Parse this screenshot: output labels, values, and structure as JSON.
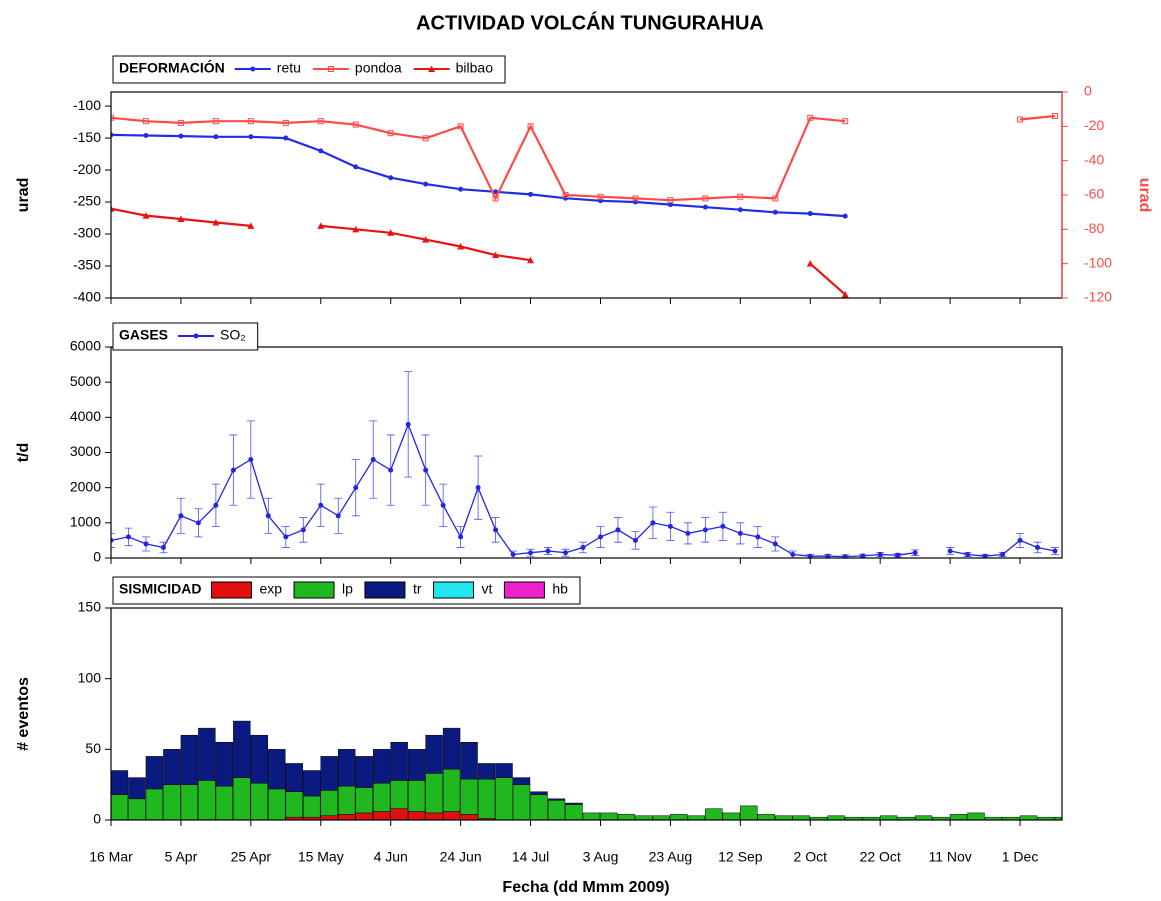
{
  "title": "ACTIVIDAD VOLCÁN TUNGURAHUA",
  "xlabel": "Fecha (dd Mmm 2009)",
  "chart_data": [
    {
      "type": "line",
      "title": "DEFORMACIÓN",
      "ylabel": "urad",
      "y2label": "urad",
      "xlim": [
        "2009-03-16",
        "2009-12-13"
      ],
      "ylim": [
        -400,
        -78
      ],
      "yticks": [
        -400,
        -350,
        -300,
        -250,
        -200,
        -150,
        -100
      ],
      "y2lim": [
        -120,
        0
      ],
      "y2ticks": [
        -120,
        -100,
        -80,
        -60,
        -40,
        -20,
        0
      ],
      "x": [
        "2009-03-16",
        "2009-03-26",
        "2009-04-05",
        "2009-04-15",
        "2009-04-25",
        "2009-05-05",
        "2009-05-15",
        "2009-05-25",
        "2009-06-04",
        "2009-06-14",
        "2009-06-24",
        "2009-07-04",
        "2009-07-14",
        "2009-07-24",
        "2009-08-03",
        "2009-08-13",
        "2009-08-23",
        "2009-09-02",
        "2009-09-12",
        "2009-09-22",
        "2009-10-02",
        "2009-10-12",
        "2009-10-22",
        "2009-11-01",
        "2009-11-11",
        "2009-11-21",
        "2009-12-01",
        "2009-12-11"
      ],
      "series": [
        {
          "name": "retu",
          "color": "#1f2fe0",
          "marker": "circle",
          "values": [
            -145,
            -146,
            -147,
            -148,
            -148,
            -150,
            -170,
            -195,
            -212,
            -222,
            -230,
            -234,
            -238,
            -244,
            -248,
            -250,
            -254,
            -258,
            -262,
            -266,
            -268,
            -272,
            null,
            null,
            null,
            null,
            null,
            null
          ]
        },
        {
          "name": "pondoa",
          "color": "#ff4a4a",
          "marker": "square",
          "axis": "y2",
          "values": [
            -15,
            -17,
            -18,
            -17,
            -17,
            -18,
            -17,
            -19,
            -24,
            -27,
            -20,
            -62,
            -20,
            -60,
            -61,
            -62,
            -63,
            -62,
            -61,
            -62,
            -15,
            -17,
            null,
            null,
            null,
            null,
            -16,
            -14
          ]
        },
        {
          "name": "bilbao",
          "color": "#e81414",
          "marker": "triangle",
          "axis": "y2",
          "values": [
            -68,
            -72,
            -74,
            -76,
            -78,
            null,
            -78,
            -80,
            -82,
            -86,
            -90,
            -95,
            -98,
            null,
            null,
            null,
            null,
            null,
            null,
            null,
            -100,
            -118,
            null,
            null,
            null,
            null,
            null,
            null
          ]
        }
      ]
    },
    {
      "type": "line",
      "title": "GASES",
      "ylabel": "t/d",
      "xlim": [
        "2009-03-16",
        "2009-12-13"
      ],
      "ylim": [
        0,
        6000
      ],
      "yticks": [
        0,
        1000,
        2000,
        3000,
        4000,
        5000,
        6000
      ],
      "x": [
        "2009-03-16",
        "2009-03-21",
        "2009-03-26",
        "2009-03-31",
        "2009-04-05",
        "2009-04-10",
        "2009-04-15",
        "2009-04-20",
        "2009-04-25",
        "2009-04-30",
        "2009-05-05",
        "2009-05-10",
        "2009-05-15",
        "2009-05-20",
        "2009-05-25",
        "2009-05-30",
        "2009-06-04",
        "2009-06-09",
        "2009-06-14",
        "2009-06-19",
        "2009-06-24",
        "2009-06-29",
        "2009-07-04",
        "2009-07-09",
        "2009-07-14",
        "2009-07-19",
        "2009-07-24",
        "2009-07-29",
        "2009-08-03",
        "2009-08-08",
        "2009-08-13",
        "2009-08-18",
        "2009-08-23",
        "2009-08-28",
        "2009-09-02",
        "2009-09-07",
        "2009-09-12",
        "2009-09-17",
        "2009-09-22",
        "2009-09-27",
        "2009-10-02",
        "2009-10-07",
        "2009-10-12",
        "2009-10-17",
        "2009-10-22",
        "2009-10-27",
        "2009-11-01",
        "2009-11-06",
        "2009-11-11",
        "2009-11-16",
        "2009-11-21",
        "2009-11-26",
        "2009-12-01",
        "2009-12-06",
        "2009-12-11"
      ],
      "series": [
        {
          "name": "SO₂",
          "color": "#2424e6",
          "marker": "circle",
          "values": [
            500,
            600,
            400,
            300,
            1200,
            1000,
            1500,
            2500,
            2800,
            1200,
            600,
            800,
            1500,
            1200,
            2000,
            2800,
            2500,
            3800,
            2500,
            1500,
            600,
            2000,
            800,
            100,
            150,
            200,
            150,
            300,
            600,
            800,
            500,
            1000,
            900,
            700,
            800,
            900,
            700,
            600,
            400,
            100,
            50,
            50,
            40,
            60,
            100,
            80,
            150,
            null,
            200,
            100,
            50,
            100,
            500,
            300,
            200
          ],
          "errors": [
            200,
            250,
            200,
            150,
            500,
            400,
            600,
            1000,
            1100,
            500,
            300,
            350,
            600,
            500,
            800,
            1100,
            1000,
            1500,
            1000,
            600,
            300,
            900,
            350,
            100,
            100,
            100,
            100,
            150,
            300,
            350,
            250,
            450,
            400,
            300,
            350,
            400,
            300,
            300,
            200,
            100,
            50,
            50,
            50,
            50,
            60,
            50,
            80,
            null,
            100,
            60,
            50,
            60,
            200,
            150,
            100
          ]
        }
      ]
    },
    {
      "type": "bar",
      "stacked": true,
      "title": "SISMICIDAD",
      "ylabel": "# eventos",
      "xlim": [
        "2009-03-16",
        "2009-12-13"
      ],
      "ylim": [
        0,
        150
      ],
      "yticks": [
        0,
        50,
        100,
        150
      ],
      "xticks": [
        {
          "value": "2009-03-16",
          "label": "16 Mar"
        },
        {
          "value": "2009-04-05",
          "label": "5 Apr"
        },
        {
          "value": "2009-04-25",
          "label": "25 Apr"
        },
        {
          "value": "2009-05-15",
          "label": "15 May"
        },
        {
          "value": "2009-06-04",
          "label": "4 Jun"
        },
        {
          "value": "2009-06-24",
          "label": "24 Jun"
        },
        {
          "value": "2009-07-14",
          "label": "14 Jul"
        },
        {
          "value": "2009-08-03",
          "label": "3 Aug"
        },
        {
          "value": "2009-08-23",
          "label": "23 Aug"
        },
        {
          "value": "2009-09-12",
          "label": "12 Sep"
        },
        {
          "value": "2009-10-02",
          "label": "2 Oct"
        },
        {
          "value": "2009-10-22",
          "label": "22 Oct"
        },
        {
          "value": "2009-11-11",
          "label": "11 Nov"
        },
        {
          "value": "2009-12-01",
          "label": "1 Dec"
        }
      ],
      "x": [
        "2009-03-16",
        "2009-03-21",
        "2009-03-26",
        "2009-03-31",
        "2009-04-05",
        "2009-04-10",
        "2009-04-15",
        "2009-04-20",
        "2009-04-25",
        "2009-04-30",
        "2009-05-05",
        "2009-05-10",
        "2009-05-15",
        "2009-05-20",
        "2009-05-25",
        "2009-05-30",
        "2009-06-04",
        "2009-06-09",
        "2009-06-14",
        "2009-06-19",
        "2009-06-24",
        "2009-06-29",
        "2009-07-04",
        "2009-07-09",
        "2009-07-14",
        "2009-07-19",
        "2009-07-24",
        "2009-07-29",
        "2009-08-03",
        "2009-08-08",
        "2009-08-13",
        "2009-08-18",
        "2009-08-23",
        "2009-08-28",
        "2009-09-02",
        "2009-09-07",
        "2009-09-12",
        "2009-09-17",
        "2009-09-22",
        "2009-09-27",
        "2009-10-02",
        "2009-10-07",
        "2009-10-12",
        "2009-10-17",
        "2009-10-22",
        "2009-10-27",
        "2009-11-01",
        "2009-11-06",
        "2009-11-11",
        "2009-11-16",
        "2009-11-21",
        "2009-11-26",
        "2009-12-01",
        "2009-12-06",
        "2009-12-11"
      ],
      "series": [
        {
          "name": "exp",
          "color": "#e01010",
          "values": [
            0,
            0,
            0,
            0,
            0,
            0,
            0,
            0,
            0,
            0,
            2,
            2,
            3,
            4,
            5,
            6,
            8,
            6,
            5,
            6,
            4,
            1,
            0,
            0,
            0,
            0,
            0,
            0,
            0,
            0,
            0,
            0,
            0,
            0,
            0,
            0,
            0,
            0,
            0,
            0,
            0,
            0,
            0,
            0,
            0,
            0,
            0,
            0,
            0,
            0,
            0,
            0,
            0,
            0,
            0
          ]
        },
        {
          "name": "lp",
          "color": "#1fb81f",
          "values": [
            18,
            15,
            22,
            25,
            25,
            28,
            24,
            30,
            26,
            22,
            18,
            15,
            18,
            20,
            18,
            20,
            20,
            22,
            28,
            30,
            25,
            28,
            30,
            25,
            18,
            14,
            11,
            5,
            5,
            4,
            3,
            3,
            4,
            3,
            8,
            5,
            10,
            4,
            3,
            3,
            2,
            3,
            2,
            2,
            3,
            2,
            3,
            2,
            4,
            5,
            2,
            2,
            3,
            2,
            2
          ]
        },
        {
          "name": "tr",
          "color": "#0a1a80",
          "values": [
            17,
            15,
            23,
            25,
            35,
            37,
            31,
            40,
            34,
            28,
            20,
            18,
            24,
            26,
            22,
            24,
            27,
            22,
            27,
            29,
            26,
            11,
            10,
            5,
            2,
            1,
            1,
            0,
            0,
            0,
            0,
            0,
            0,
            0,
            0,
            0,
            0,
            0,
            0,
            0,
            0,
            0,
            0,
            0,
            0,
            0,
            0,
            0,
            0,
            0,
            0,
            0,
            0,
            0,
            0
          ]
        },
        {
          "name": "vt",
          "color": "#22e6ee",
          "values": [
            0,
            0,
            0,
            0,
            0,
            0,
            0,
            0,
            0,
            0,
            0,
            0,
            0,
            0,
            0,
            0,
            0,
            0,
            0,
            0,
            0,
            0,
            0,
            0,
            0,
            0,
            0,
            0,
            0,
            0,
            0,
            0,
            0,
            0,
            0,
            0,
            0,
            0,
            0,
            0,
            0,
            0,
            0,
            0,
            0,
            0,
            0,
            0,
            0,
            0,
            0,
            0,
            0,
            0,
            0
          ]
        },
        {
          "name": "hb",
          "color": "#ee22cc",
          "values": [
            0,
            0,
            0,
            0,
            0,
            0,
            0,
            0,
            0,
            0,
            0,
            0,
            0,
            0,
            0,
            0,
            0,
            0,
            0,
            0,
            0,
            0,
            0,
            0,
            0,
            0,
            0,
            0,
            0,
            0,
            0,
            0,
            0,
            0,
            0,
            0,
            0,
            0,
            0,
            0,
            0,
            0,
            0,
            0,
            0,
            0,
            0,
            0,
            0,
            0,
            0,
            0,
            0,
            0,
            0
          ]
        }
      ]
    }
  ]
}
